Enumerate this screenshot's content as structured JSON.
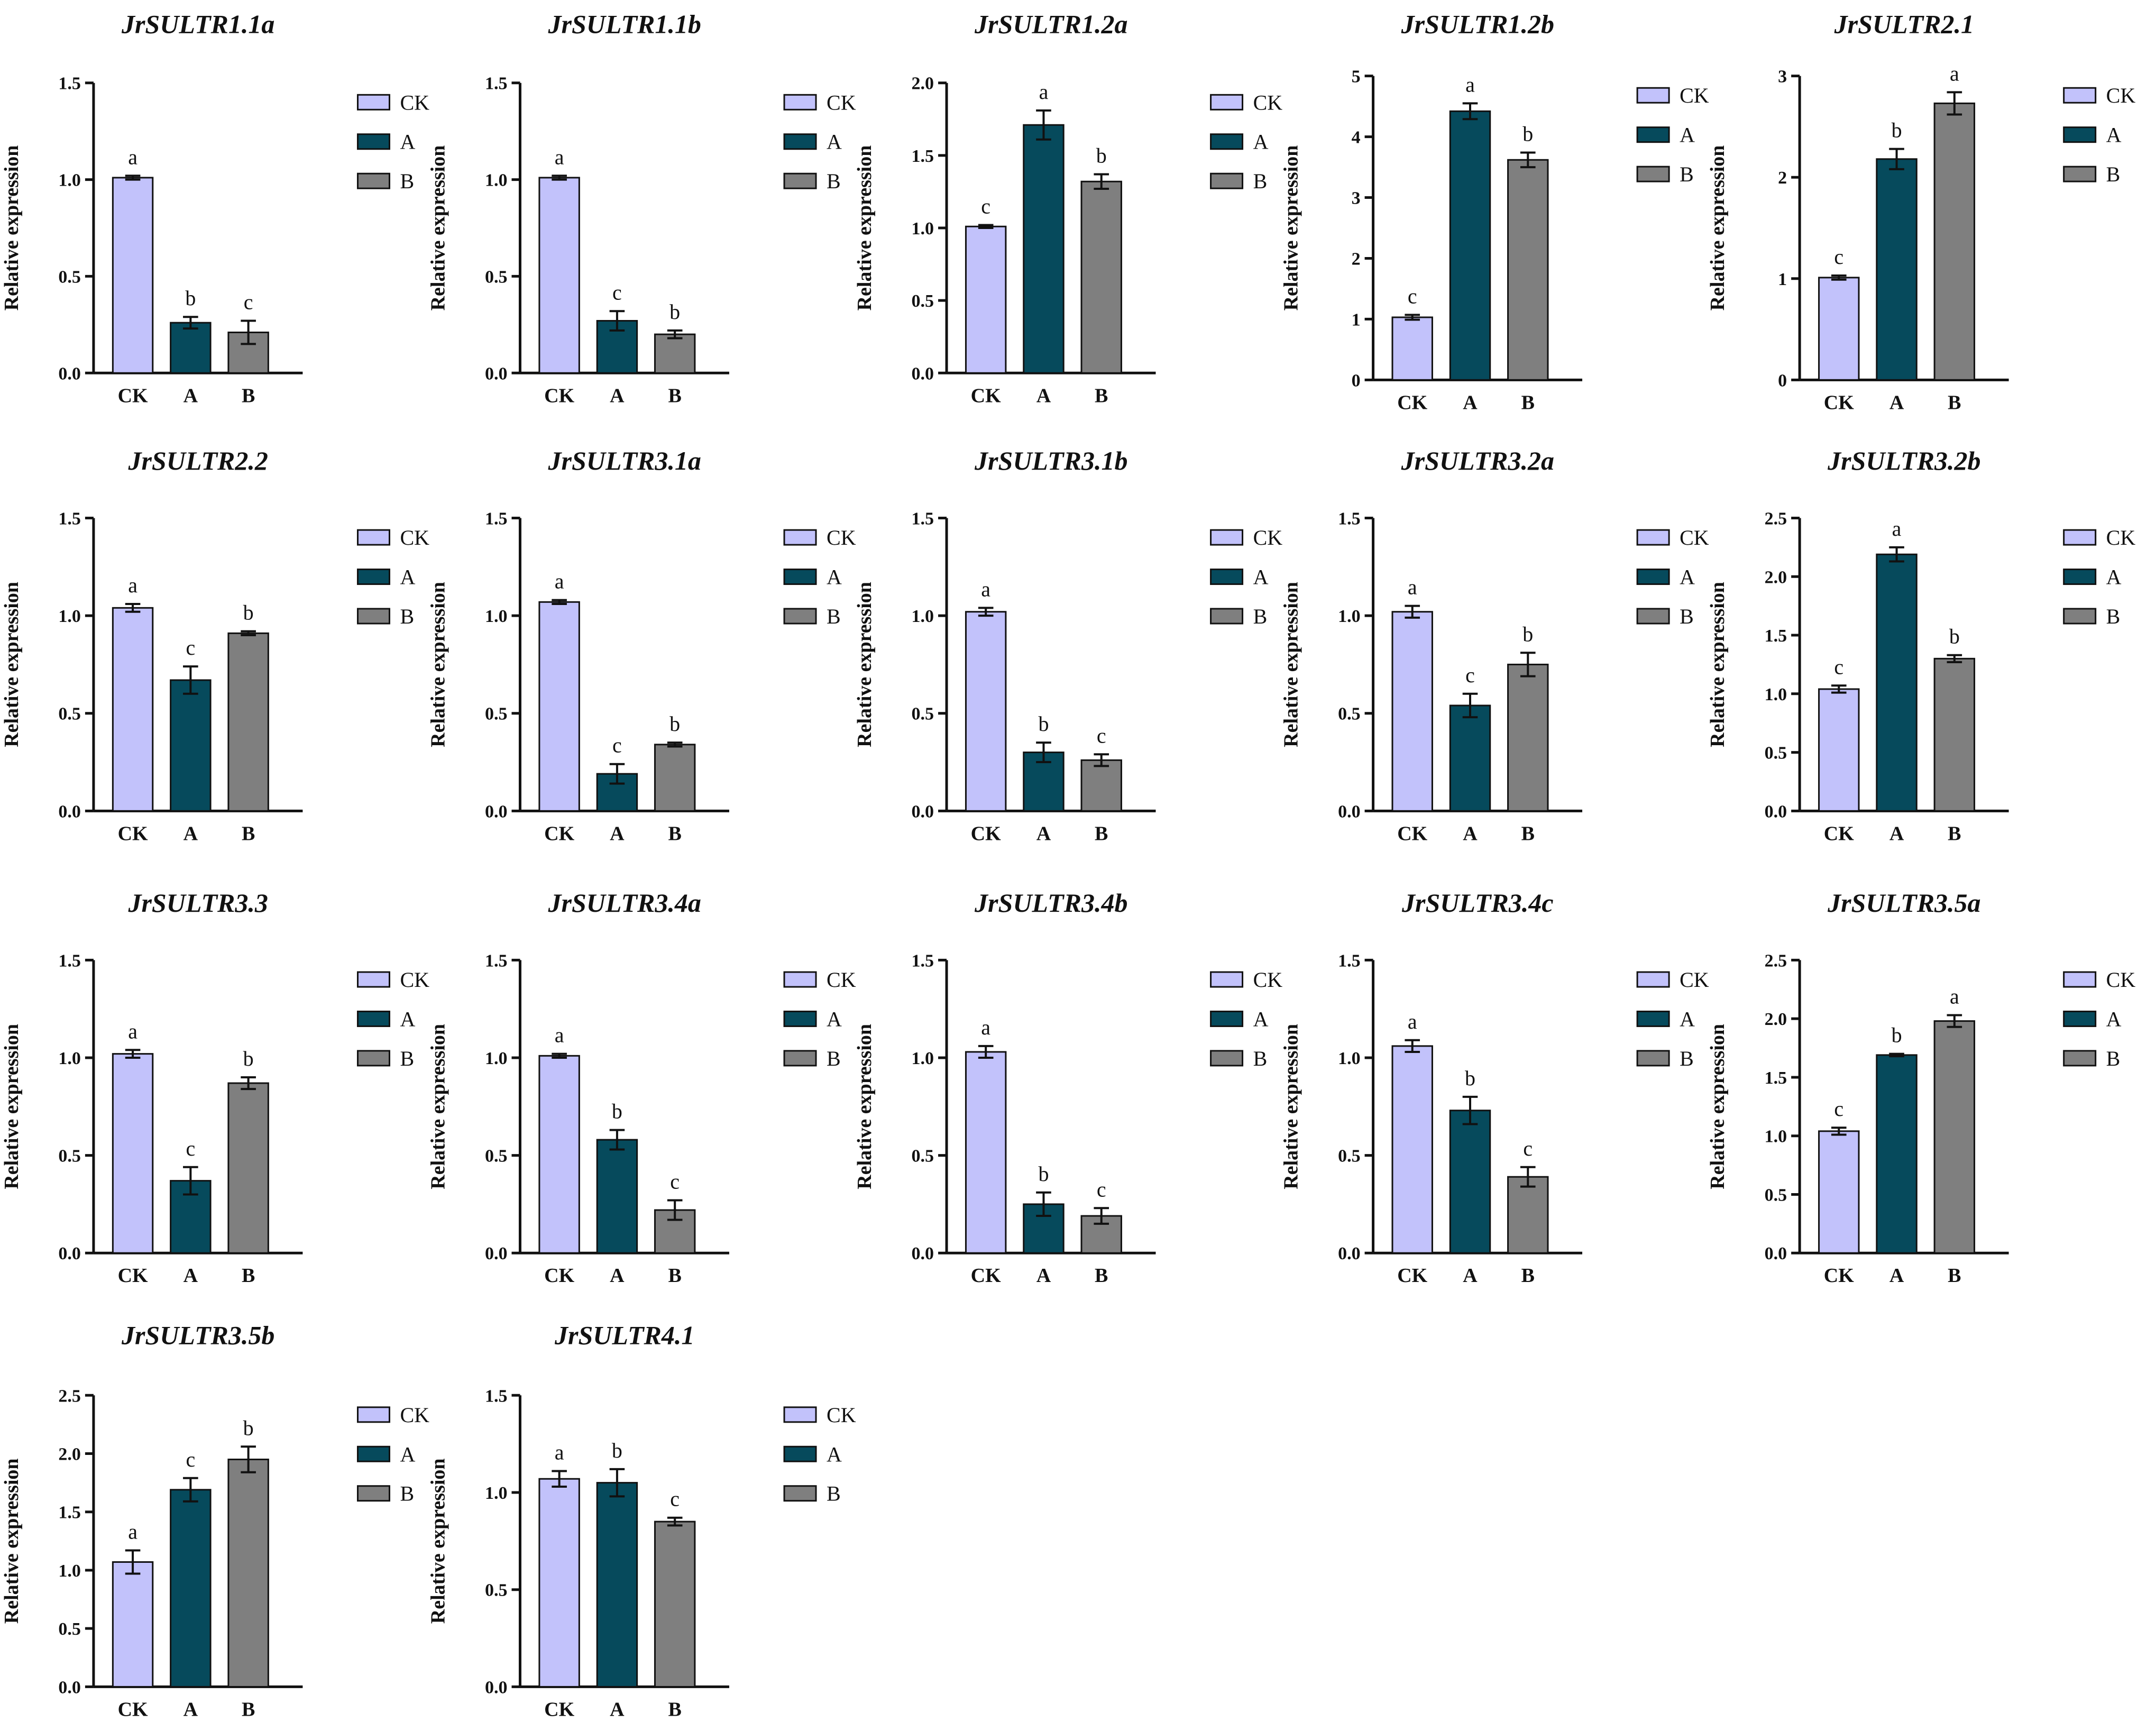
{
  "colors": {
    "CK": "#c2c2fb",
    "A": "#064a5c",
    "B": "#7f7f7f",
    "axis": "#111111"
  },
  "legend": [
    "CK",
    "A",
    "B"
  ],
  "chart_data": [
    {
      "type": "bar",
      "title": "JrSULTR1.1a",
      "ylabel": "Relative expression",
      "categories": [
        "CK",
        "A",
        "B"
      ],
      "values": [
        1.01,
        0.26,
        0.21
      ],
      "errors": [
        0.01,
        0.03,
        0.06
      ],
      "letters": [
        "a",
        "b",
        "c"
      ],
      "ylim": [
        0,
        1.5
      ],
      "yticks": [
        "0.0",
        "0.5",
        "1.0",
        "1.5"
      ]
    },
    {
      "type": "bar",
      "title": "JrSULTR1.1b",
      "ylabel": "Relative expression",
      "categories": [
        "CK",
        "A",
        "B"
      ],
      "values": [
        1.01,
        0.27,
        0.2
      ],
      "errors": [
        0.01,
        0.05,
        0.02
      ],
      "letters": [
        "a",
        "c",
        "b"
      ],
      "ylim": [
        0,
        1.5
      ],
      "yticks": [
        "0.0",
        "0.5",
        "1.0",
        "1.5"
      ]
    },
    {
      "type": "bar",
      "title": "JrSULTR1.2a",
      "ylabel": "Relative expression",
      "categories": [
        "CK",
        "A",
        "B"
      ],
      "values": [
        1.01,
        1.71,
        1.32
      ],
      "errors": [
        0.01,
        0.1,
        0.05
      ],
      "letters": [
        "c",
        "a",
        "b"
      ],
      "ylim": [
        0,
        2.0
      ],
      "yticks": [
        "0.0",
        "0.5",
        "1.0",
        "1.5",
        "2.0"
      ]
    },
    {
      "type": "bar",
      "title": "JrSULTR1.2b",
      "ylabel": "Relative expression",
      "categories": [
        "CK",
        "A",
        "B"
      ],
      "values": [
        1.03,
        4.42,
        3.62
      ],
      "errors": [
        0.04,
        0.13,
        0.12
      ],
      "letters": [
        "c",
        "a",
        "b"
      ],
      "ylim": [
        0,
        5
      ],
      "yticks": [
        "0",
        "1",
        "2",
        "3",
        "4",
        "5"
      ]
    },
    {
      "type": "bar",
      "title": "JrSULTR2.1",
      "ylabel": "Relative expression",
      "categories": [
        "CK",
        "A",
        "B"
      ],
      "values": [
        1.01,
        2.18,
        2.73
      ],
      "errors": [
        0.02,
        0.1,
        0.11
      ],
      "letters": [
        "c",
        "b",
        "a"
      ],
      "ylim": [
        0,
        3
      ],
      "yticks": [
        "0",
        "1",
        "2",
        "3"
      ]
    },
    {
      "type": "bar",
      "title": "JrSULTR2.2",
      "ylabel": "Relative expression",
      "categories": [
        "CK",
        "A",
        "B"
      ],
      "values": [
        1.04,
        0.67,
        0.91
      ],
      "errors": [
        0.02,
        0.07,
        0.01
      ],
      "letters": [
        "a",
        "c",
        "b"
      ],
      "ylim": [
        0,
        1.5
      ],
      "yticks": [
        "0.0",
        "0.5",
        "1.0",
        "1.5"
      ]
    },
    {
      "type": "bar",
      "title": "JrSULTR3.1a",
      "ylabel": "Relative expression",
      "categories": [
        "CK",
        "A",
        "B"
      ],
      "values": [
        1.07,
        0.19,
        0.34
      ],
      "errors": [
        0.01,
        0.05,
        0.01
      ],
      "letters": [
        "a",
        "c",
        "b"
      ],
      "ylim": [
        0,
        1.5
      ],
      "yticks": [
        "0.0",
        "0.5",
        "1.0",
        "1.5"
      ]
    },
    {
      "type": "bar",
      "title": "JrSULTR3.1b",
      "ylabel": "Relative expression",
      "categories": [
        "CK",
        "A",
        "B"
      ],
      "values": [
        1.02,
        0.3,
        0.26
      ],
      "errors": [
        0.02,
        0.05,
        0.03
      ],
      "letters": [
        "a",
        "b",
        "c"
      ],
      "ylim": [
        0,
        1.5
      ],
      "yticks": [
        "0.0",
        "0.5",
        "1.0",
        "1.5"
      ]
    },
    {
      "type": "bar",
      "title": "JrSULTR3.2a",
      "ylabel": "Relative expression",
      "categories": [
        "CK",
        "A",
        "B"
      ],
      "values": [
        1.02,
        0.54,
        0.75
      ],
      "errors": [
        0.03,
        0.06,
        0.06
      ],
      "letters": [
        "a",
        "c",
        "b"
      ],
      "ylim": [
        0,
        1.5
      ],
      "yticks": [
        "0.0",
        "0.5",
        "1.0",
        "1.5"
      ]
    },
    {
      "type": "bar",
      "title": "JrSULTR3.2b",
      "ylabel": "Relative expression",
      "categories": [
        "CK",
        "A",
        "B"
      ],
      "values": [
        1.04,
        2.19,
        1.3
      ],
      "errors": [
        0.03,
        0.06,
        0.03
      ],
      "letters": [
        "c",
        "a",
        "b"
      ],
      "ylim": [
        0,
        2.5
      ],
      "yticks": [
        "0.0",
        "0.5",
        "1.0",
        "1.5",
        "2.0",
        "2.5"
      ]
    },
    {
      "type": "bar",
      "title": "JrSULTR3.3",
      "ylabel": "Relative expression",
      "categories": [
        "CK",
        "A",
        "B"
      ],
      "values": [
        1.02,
        0.37,
        0.87
      ],
      "errors": [
        0.02,
        0.07,
        0.03
      ],
      "letters": [
        "a",
        "c",
        "b"
      ],
      "ylim": [
        0,
        1.5
      ],
      "yticks": [
        "0.0",
        "0.5",
        "1.0",
        "1.5"
      ]
    },
    {
      "type": "bar",
      "title": "JrSULTR3.4a",
      "ylabel": "Relative expression",
      "categories": [
        "CK",
        "A",
        "B"
      ],
      "values": [
        1.01,
        0.58,
        0.22
      ],
      "errors": [
        0.01,
        0.05,
        0.05
      ],
      "letters": [
        "a",
        "b",
        "c"
      ],
      "ylim": [
        0,
        1.5
      ],
      "yticks": [
        "0.0",
        "0.5",
        "1.0",
        "1.5"
      ]
    },
    {
      "type": "bar",
      "title": "JrSULTR3.4b",
      "ylabel": "Relative expression",
      "categories": [
        "CK",
        "A",
        "B"
      ],
      "values": [
        1.03,
        0.25,
        0.19
      ],
      "errors": [
        0.03,
        0.06,
        0.04
      ],
      "letters": [
        "a",
        "b",
        "c"
      ],
      "ylim": [
        0,
        1.5
      ],
      "yticks": [
        "0.0",
        "0.5",
        "1.0",
        "1.5"
      ]
    },
    {
      "type": "bar",
      "title": "JrSULTR3.4c",
      "ylabel": "Relative expression",
      "categories": [
        "CK",
        "A",
        "B"
      ],
      "values": [
        1.06,
        0.73,
        0.39
      ],
      "errors": [
        0.03,
        0.07,
        0.05
      ],
      "letters": [
        "a",
        "b",
        "c"
      ],
      "ylim": [
        0,
        1.5
      ],
      "yticks": [
        "0.0",
        "0.5",
        "1.0",
        "1.5"
      ]
    },
    {
      "type": "bar",
      "title": "JrSULTR3.5a",
      "ylabel": "Relative expression",
      "categories": [
        "CK",
        "A",
        "B"
      ],
      "values": [
        1.04,
        1.69,
        1.98
      ],
      "errors": [
        0.03,
        0.01,
        0.05
      ],
      "letters": [
        "c",
        "b",
        "a"
      ],
      "ylim": [
        0,
        2.5
      ],
      "yticks": [
        "0.0",
        "0.5",
        "1.0",
        "1.5",
        "2.0",
        "2.5"
      ]
    },
    {
      "type": "bar",
      "title": "JrSULTR3.5b",
      "ylabel": "Relative expression",
      "categories": [
        "CK",
        "A",
        "B"
      ],
      "values": [
        1.07,
        1.69,
        1.95
      ],
      "errors": [
        0.1,
        0.1,
        0.11
      ],
      "letters": [
        "a",
        "c",
        "b"
      ],
      "ylim": [
        0,
        2.5
      ],
      "yticks": [
        "0.0",
        "0.5",
        "1.0",
        "1.5",
        "2.0",
        "2.5"
      ]
    },
    {
      "type": "bar",
      "title": "JrSULTR4.1",
      "ylabel": "Relative expression",
      "categories": [
        "CK",
        "A",
        "B"
      ],
      "values": [
        1.07,
        1.05,
        0.85
      ],
      "errors": [
        0.04,
        0.07,
        0.02
      ],
      "letters": [
        "a",
        "b",
        "c"
      ],
      "ylim": [
        0,
        1.5
      ],
      "yticks": [
        "0.0",
        "0.5",
        "1.0",
        "1.5"
      ]
    }
  ]
}
